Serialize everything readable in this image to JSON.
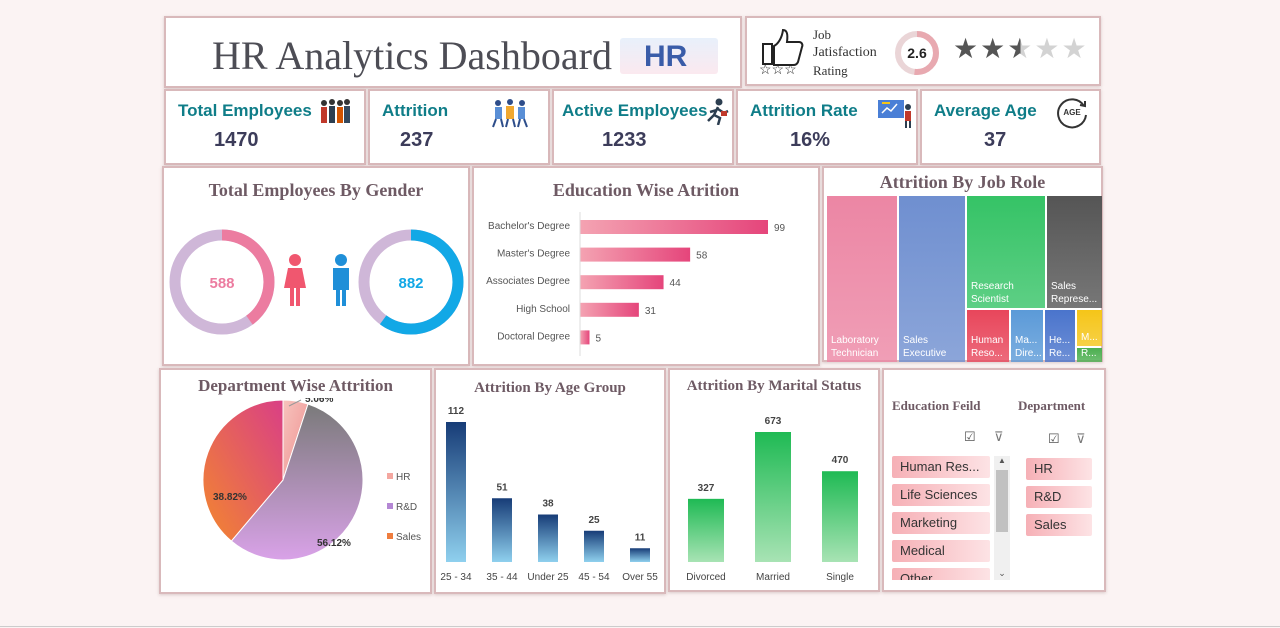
{
  "header": {
    "title": "HR Analytics Dashboard",
    "logo_text": "HR"
  },
  "rating": {
    "label_lines": [
      "Job",
      "Jatisfaction",
      "Rating"
    ],
    "value": "2.6",
    "stars_value": 2.6,
    "stars_max": 5
  },
  "kpis": [
    {
      "label": "Total Employees",
      "value": "1470",
      "icon": "people-group-icon"
    },
    {
      "label": "Attrition",
      "value": "237",
      "icon": "people-leaving-icon"
    },
    {
      "label": "Active Employees",
      "value": "1233",
      "icon": "running-person-icon"
    },
    {
      "label": "Attrition Rate",
      "value": "16%",
      "icon": "presentation-board-icon"
    },
    {
      "label": "Average Age",
      "value": "37",
      "icon": "age-cycle-icon",
      "icon_text": "AGE"
    }
  ],
  "panels": {
    "gender": "Total Employees By Gender",
    "education": "Education Wise Atrition",
    "jobrole": "Attrition By Job Role",
    "department": "Department Wise Attrition",
    "age": "Attrition By Age Group",
    "marital": "Attrition By Marital Status"
  },
  "gender": {
    "female": "588",
    "male": "882"
  },
  "jobrole": [
    {
      "label": "Laboratory Technician",
      "color": "#ec86a4"
    },
    {
      "label": "Sales Executive",
      "color": "#6f8fd0"
    },
    {
      "label": "Research Scientist",
      "color": "#35c366"
    },
    {
      "label": "Sales Represe...",
      "color": "#555555"
    },
    {
      "label": "Human Reso...",
      "color": "#e8465b"
    },
    {
      "label": "Ma... Dire...",
      "color": "#5b9ad8"
    },
    {
      "label": "He... Re...",
      "color": "#4a74cc"
    },
    {
      "label": "M...",
      "color": "#f5c518"
    },
    {
      "label": "R...",
      "color": "#4caf50"
    }
  ],
  "slicers": {
    "education_title": "Education Feild",
    "department_title": "Department",
    "education_items": [
      "Human Res...",
      "Life Sciences",
      "Marketing",
      "Medical",
      "Other"
    ],
    "department_items": [
      "HR",
      "R&D",
      "Sales"
    ]
  },
  "chart_data": [
    {
      "type": "pie",
      "subtype": "donut",
      "title": "Total Employees By Gender",
      "categories": [
        "Female",
        "Male"
      ],
      "values": [
        588,
        882
      ]
    },
    {
      "type": "bar",
      "orientation": "horizontal",
      "title": "Education Wise Atrition",
      "categories": [
        "Bachelor's Degree",
        "Master's Degree",
        "Associates Degree",
        "High School",
        "Doctoral Degree"
      ],
      "values": [
        99,
        58,
        44,
        31,
        5
      ]
    },
    {
      "type": "pie",
      "title": "Department Wise Attrition",
      "categories": [
        "HR",
        "R&D",
        "Sales"
      ],
      "values": [
        5.06,
        56.12,
        38.82
      ],
      "labels": [
        "5.06%",
        "56.12%",
        "38.82%"
      ],
      "colors": [
        "#f4a7a0",
        "#b487d4",
        "#ef7d3e"
      ],
      "legend": "right"
    },
    {
      "type": "bar",
      "title": "Attrition By Age Group",
      "categories": [
        "25 - 34",
        "35 - 44",
        "Under 25",
        "45 - 54",
        "Over 55"
      ],
      "values": [
        112,
        51,
        38,
        25,
        11
      ]
    },
    {
      "type": "bar",
      "title": "Attrition By Marital Status",
      "categories": [
        "Divorced",
        "Married",
        "Single"
      ],
      "values": [
        327,
        673,
        470
      ]
    }
  ]
}
